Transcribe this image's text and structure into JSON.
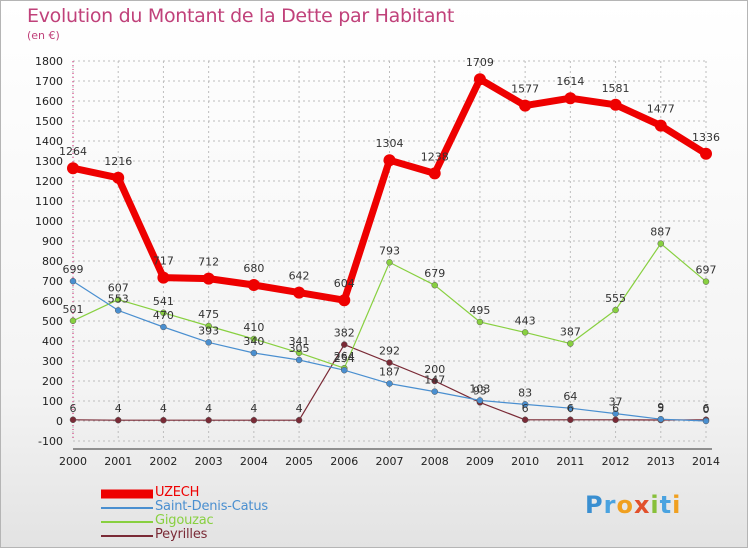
{
  "header": {
    "title": "Evolution du Montant de la Dette par Habitant",
    "subtitle": "(en €)"
  },
  "logo": {
    "text": "Proxiti"
  },
  "colors": {
    "title": "#c0417a",
    "grid": "#bdbdbd",
    "axis": "#d21c6e"
  },
  "chart_data": {
    "type": "line",
    "x": [
      "2000",
      "2001",
      "2002",
      "2003",
      "2004",
      "2005",
      "2006",
      "2007",
      "2008",
      "2009",
      "2010",
      "2011",
      "2012",
      "2013",
      "2014"
    ],
    "ylim": [
      -100,
      1800
    ],
    "yticks": [
      -100,
      0,
      100,
      200,
      300,
      400,
      500,
      600,
      700,
      800,
      900,
      1000,
      1100,
      1200,
      1300,
      1400,
      1500,
      1600,
      1700,
      1800
    ],
    "grid": true,
    "legend_position": "bottom-left",
    "series": [
      {
        "name": "UZECH",
        "color": "#ee0000",
        "values": [
          1264,
          1216,
          717,
          712,
          680,
          642,
          604,
          1304,
          1238,
          1709,
          1577,
          1614,
          1581,
          1477,
          1336
        ],
        "labels": [
          "1264",
          "1216",
          "717",
          "712",
          "680",
          "642",
          "604",
          "1304",
          "1238",
          "1709",
          "1577",
          "1614",
          "1581",
          "1477",
          "1336"
        ]
      },
      {
        "name": "Saint-Denis-Catus",
        "color": "#4a8fd0",
        "values": [
          699,
          553,
          470,
          393,
          340,
          305,
          254,
          187,
          147,
          103,
          83,
          64,
          37,
          9,
          0
        ],
        "labels": [
          "699",
          "553",
          "470",
          "393",
          "340",
          "305",
          "254",
          "187",
          "147",
          "103",
          "83",
          "64",
          "37",
          "9",
          "0"
        ]
      },
      {
        "name": "Gigouzac",
        "color": "#88d040",
        "values": [
          501,
          607,
          541,
          475,
          410,
          341,
          264,
          793,
          679,
          495,
          443,
          387,
          555,
          887,
          697
        ],
        "labels": [
          "501",
          "607",
          "541",
          "475",
          "410",
          "341",
          "264",
          "793",
          "679",
          "495",
          "443",
          "387",
          "555",
          "887",
          "697"
        ]
      },
      {
        "name": "Peyrilles",
        "color": "#7a2a36",
        "values": [
          6,
          4,
          4,
          4,
          4,
          4,
          382,
          292,
          200,
          93,
          6,
          6,
          6,
          5,
          6
        ],
        "labels": [
          "6",
          "4",
          "4",
          "4",
          "4",
          "4",
          "382",
          "292",
          "200",
          "93",
          "6",
          "6",
          "6",
          "5",
          "6"
        ]
      }
    ]
  }
}
